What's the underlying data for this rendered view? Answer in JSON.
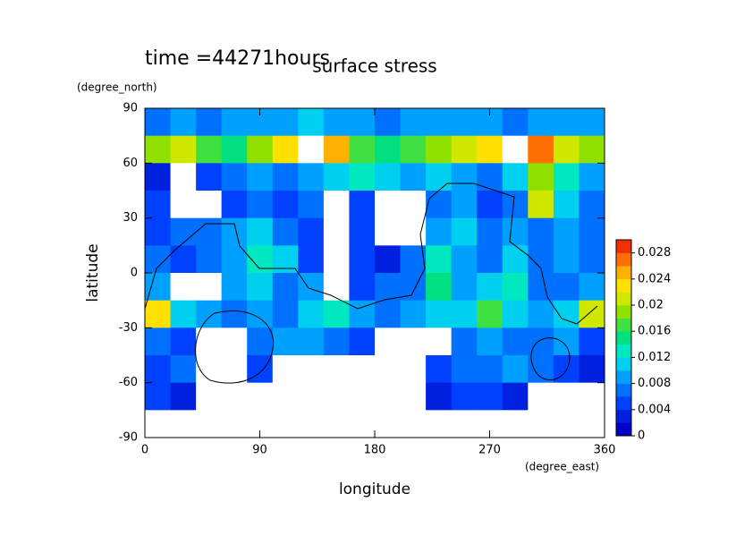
{
  "chart_data": {
    "type": "contour",
    "title": "surface stress",
    "annotation": "time =44271hours",
    "x_label": "longitude",
    "x_unit": "(degree_east)",
    "y_label": "latitude",
    "y_unit": "(degree_north)",
    "x": [
      10,
      30,
      50,
      70,
      90,
      110,
      130,
      150,
      170,
      190,
      210,
      230,
      250,
      270,
      290,
      310,
      330,
      350
    ],
    "y": [
      82.5,
      67.5,
      52.5,
      37.5,
      22.5,
      7.5,
      -7.5,
      -22.5,
      -37.5,
      -52.5,
      -67.5,
      -82.5
    ],
    "z": [
      [
        0.006,
        0.008,
        0.007,
        0.009,
        0.008,
        0.008,
        0.01,
        0.009,
        0.008,
        0.007,
        0.008,
        0.009,
        0.008,
        0.009,
        0.007,
        0.008,
        0.009,
        0.008
      ],
      [
        0.018,
        0.02,
        0.016,
        0.014,
        0.018,
        0.022,
        0.032,
        0.024,
        0.016,
        0.014,
        0.016,
        0.018,
        0.02,
        0.022,
        0.032,
        0.026,
        0.02,
        0.018
      ],
      [
        0.002,
        0,
        0.004,
        0.006,
        0.008,
        0.006,
        0.008,
        0.01,
        0.012,
        0.01,
        0.008,
        0.01,
        0.008,
        0.006,
        0.01,
        0.018,
        0.012,
        0.008
      ],
      [
        0.004,
        0,
        0,
        0.005,
        0.006,
        0.004,
        0.007,
        0,
        0.005,
        0,
        0,
        0.006,
        0.008,
        0.004,
        0.006,
        0.02,
        0.01,
        0.006
      ],
      [
        0.004,
        0.006,
        0.006,
        0.008,
        0.01,
        0.006,
        0.004,
        0,
        0.005,
        0,
        0,
        0.008,
        0.01,
        0.006,
        0.008,
        0.006,
        0.008,
        0.006
      ],
      [
        0.006,
        0.004,
        0.006,
        0.008,
        0.012,
        0.01,
        0.004,
        0,
        0.004,
        0.002,
        0.006,
        0.012,
        0.008,
        0.006,
        0.01,
        0.006,
        0.008,
        0.006
      ],
      [
        0.008,
        0,
        0,
        0.008,
        0.01,
        0.006,
        0.008,
        0,
        0.004,
        0.006,
        0.006,
        0.014,
        0.008,
        0.01,
        0.012,
        0.006,
        0.006,
        0.008
      ],
      [
        0.022,
        0.01,
        0.008,
        0.006,
        0.008,
        0.006,
        0.01,
        0.012,
        0.008,
        0.006,
        0.008,
        0.01,
        0.01,
        0.016,
        0.01,
        0.008,
        0.01,
        0.02
      ],
      [
        0.006,
        0.004,
        0,
        0,
        0.006,
        0.008,
        0.008,
        0.006,
        0.004,
        0,
        0,
        0,
        0.006,
        0.008,
        0.006,
        0.006,
        0.008,
        0.004
      ],
      [
        0.004,
        0.006,
        0,
        0,
        0.004,
        0,
        0,
        0,
        0,
        0,
        0,
        0.004,
        0.006,
        0.006,
        0.008,
        0.006,
        0.004,
        0.002
      ],
      [
        0.004,
        0.002,
        0,
        0,
        0,
        0,
        0,
        0,
        0,
        0,
        0,
        0.002,
        0.004,
        0.004,
        0.002,
        0,
        0,
        0
      ],
      [
        0,
        0,
        0,
        0,
        0,
        0,
        0,
        0,
        0,
        0,
        0,
        0,
        0,
        0,
        0,
        0,
        0,
        0
      ]
    ],
    "xlim": [
      0,
      360
    ],
    "xticks": [
      0,
      90,
      180,
      270,
      360
    ],
    "ylim": [
      -90,
      90
    ],
    "yticks": [
      -90,
      -60,
      -30,
      0,
      30,
      60,
      90
    ],
    "zlim": [
      0,
      0.03
    ],
    "zticks": [
      0,
      0.004,
      0.008,
      0.012,
      0.016,
      0.02,
      0.024,
      0.028
    ],
    "colorscale": [
      "#0000c8",
      "#0020e0",
      "#0040ff",
      "#0070ff",
      "#00a0ff",
      "#00d0f0",
      "#00e8c0",
      "#00e080",
      "#40e040",
      "#90e000",
      "#d0e800",
      "#ffe000",
      "#ffb000",
      "#ff7000",
      "#f03000"
    ],
    "blank_color": "#ffffff"
  }
}
